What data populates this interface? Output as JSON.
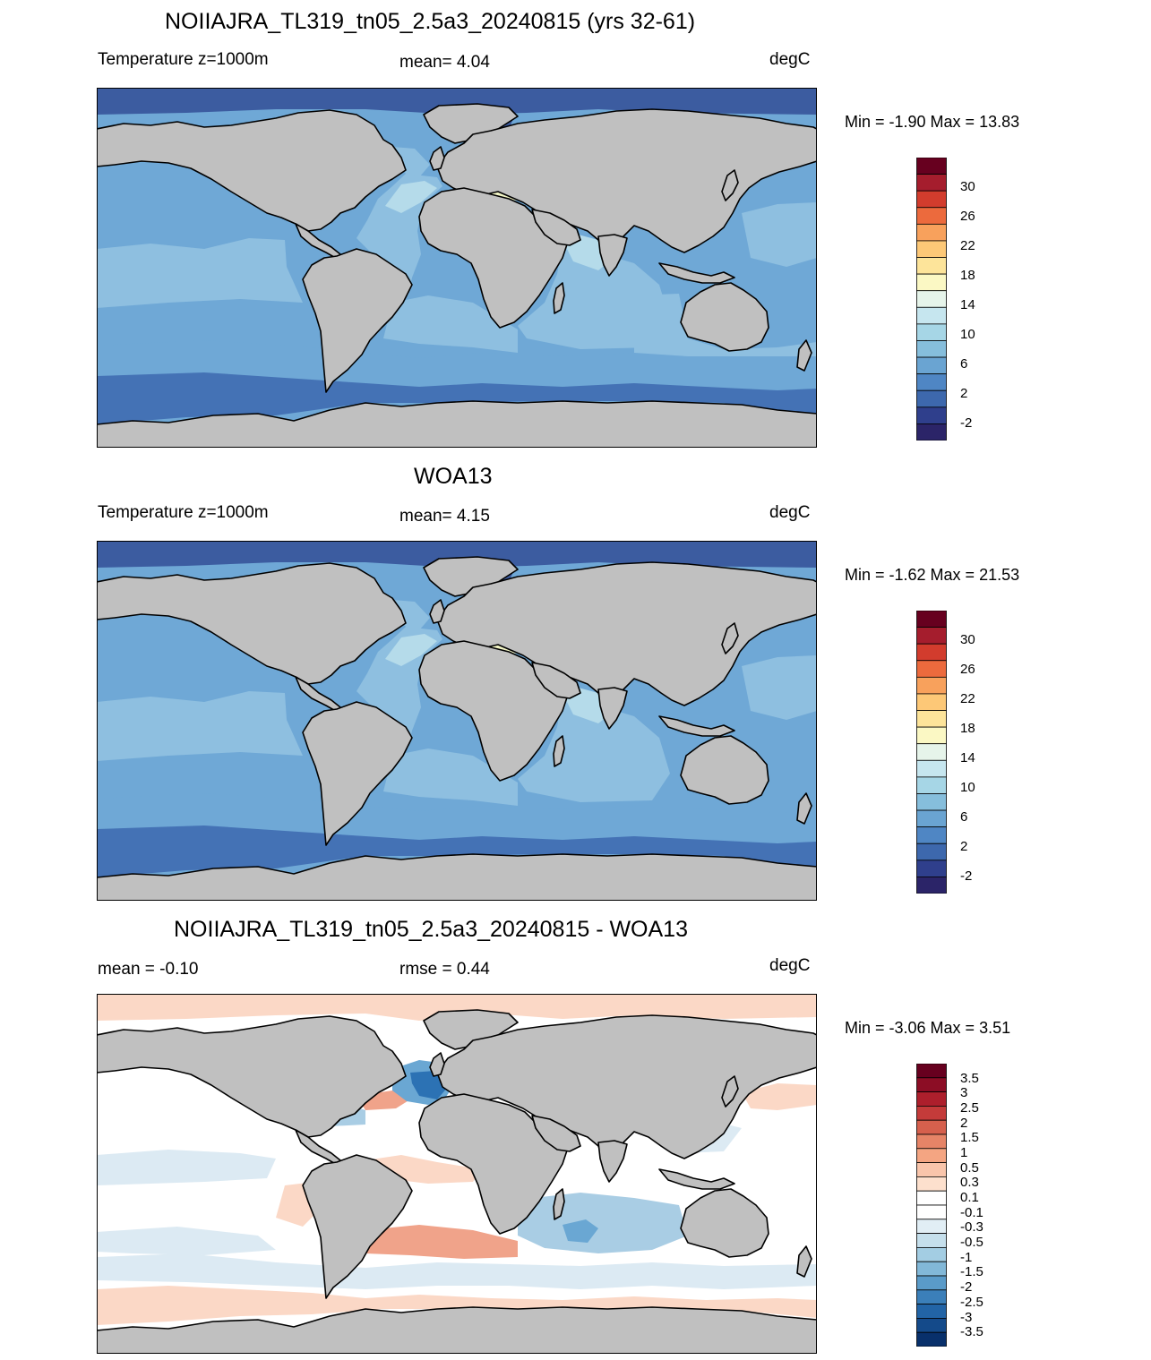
{
  "panels": [
    {
      "title": "NOIIAJRA_TL319_tn05_2.5a3_20240815 (yrs 32-61)",
      "left_label": "Temperature z=1000m",
      "center_label": "mean=   4.04",
      "right_label": "degC",
      "minmax": "Min =  -1.90 Max =  13.83",
      "colorbar_labels": [
        "30",
        "26",
        "22",
        "18",
        "14",
        "10",
        "6",
        "2",
        "-2"
      ],
      "colorbar_colors": [
        "#67001f",
        "#a51d2d",
        "#d23c2d",
        "#ec6a3d",
        "#f8a15c",
        "#fdc877",
        "#fde49a",
        "#fbf8c4",
        "#e6f4ea",
        "#c6e6ef",
        "#a6d6e6",
        "#86bedc",
        "#6aa4d2",
        "#4f86c4",
        "#3d68ad",
        "#2f3f8c",
        "#2b2468"
      ],
      "field": "model",
      "colors": {
        "land": "#c0c0c0",
        "arctic": "#3c5ca0",
        "south_deep": "#4472b5",
        "main": "#6fa8d6",
        "mid": "#8ebfe0",
        "light": "#b5dbea",
        "warm": "#f3f6c6"
      }
    },
    {
      "title": "WOA13",
      "left_label": "Temperature z=1000m",
      "center_label": "mean=   4.15",
      "right_label": "degC",
      "minmax": "Min =  -1.62 Max =  21.53",
      "colorbar_labels": [
        "30",
        "26",
        "22",
        "18",
        "14",
        "10",
        "6",
        "2",
        "-2"
      ],
      "colorbar_colors": [
        "#67001f",
        "#a51d2d",
        "#d23c2d",
        "#ec6a3d",
        "#f8a15c",
        "#fdc877",
        "#fde49a",
        "#fbf8c4",
        "#e6f4ea",
        "#c6e6ef",
        "#a6d6e6",
        "#86bedc",
        "#6aa4d2",
        "#4f86c4",
        "#3d68ad",
        "#2f3f8c",
        "#2b2468"
      ],
      "field": "obs",
      "colors": {
        "land": "#c0c0c0",
        "arctic": "#3c5ca0",
        "south_deep": "#4472b5",
        "main": "#6fa8d6",
        "mid": "#8ebfe0",
        "light": "#b5dbea",
        "warm": "#f3f6c6"
      }
    },
    {
      "title": "NOIIAJRA_TL319_tn05_2.5a3_20240815 - WOA13",
      "left_label": "mean =  -0.10",
      "center_label": "rmse =   0.44",
      "right_label": "degC",
      "minmax": "Min =  -3.06 Max =   3.51",
      "colorbar_labels": [
        "3.5",
        "3",
        "2.5",
        "2",
        "1.5",
        "1",
        "0.5",
        "0.3",
        "0.1",
        "-0.1",
        "-0.3",
        "-0.5",
        "-1",
        "-1.5",
        "-2",
        "-2.5",
        "-3",
        "-3.5"
      ],
      "colorbar_colors": [
        "#67001f",
        "#8c0d25",
        "#ad1f2c",
        "#c43b3a",
        "#d6604d",
        "#e68467",
        "#f4a582",
        "#f9c5ab",
        "#fde0cd",
        "#ffffff",
        "#ffffff",
        "#e1eef5",
        "#c5dfec",
        "#a3cde3",
        "#82b8d8",
        "#5a9bc9",
        "#3b7fb9",
        "#2264a6",
        "#144a8a",
        "#08306b"
      ],
      "field": "diff",
      "colors": {
        "land": "#c0c0c0",
        "white": "#ffffff",
        "pale_red": "#fbd8c6",
        "red": "#f0a38a",
        "dark_red": "#c9403a",
        "pale_blue": "#dceaf3",
        "blue": "#a9cde4",
        "mid_blue": "#6aa7d3",
        "dark_blue": "#2c72b4"
      }
    }
  ]
}
